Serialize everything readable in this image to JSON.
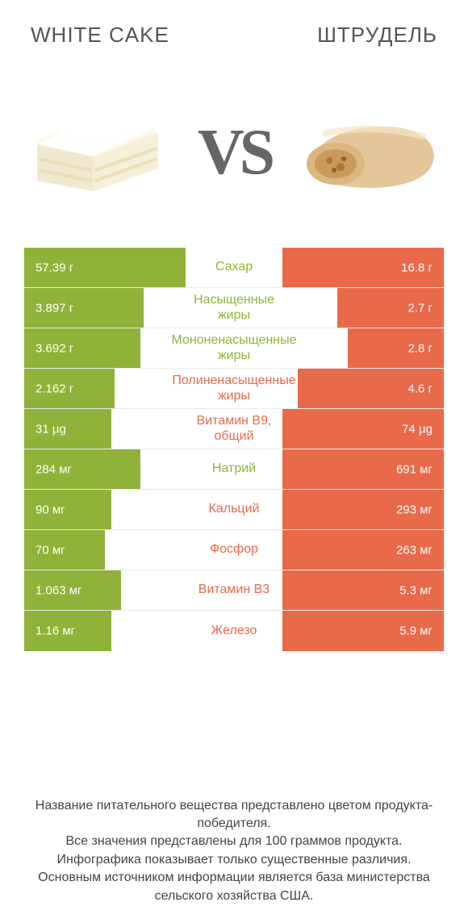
{
  "colors": {
    "left": "#8fb339",
    "right": "#e9694b",
    "bg": "#ffffff"
  },
  "header": {
    "left_title": "WHITE CAKE",
    "right_title": "ШТРУДЕЛЬ",
    "vs": "VS"
  },
  "rows": [
    {
      "label": "Сахар",
      "left_val": "57.39 г",
      "right_val": "16.8 г",
      "left_pct": 100,
      "right_pct": 100,
      "winner": "left"
    },
    {
      "label": "Насыщенные жиры",
      "left_val": "3.897 г",
      "right_val": "2.7 г",
      "left_pct": 74,
      "right_pct": 66,
      "winner": "left"
    },
    {
      "label": "Мононенасыщенные жиры",
      "left_val": "3.692 г",
      "right_val": "2.8 г",
      "left_pct": 80,
      "right_pct": 66,
      "winner": "left"
    },
    {
      "label": "Полиненасыщенные жиры",
      "left_val": "2.162 г",
      "right_val": "4.6 г",
      "left_pct": 62,
      "right_pct": 100,
      "winner": "right"
    },
    {
      "label": "Витамин B9, общий",
      "left_val": "31 µg",
      "right_val": "74 µg",
      "left_pct": 54,
      "right_pct": 100,
      "winner": "right"
    },
    {
      "label": "Натрий",
      "left_val": "284 мг",
      "right_val": "691 мг",
      "left_pct": 72,
      "right_pct": 100,
      "winner": "left"
    },
    {
      "label": "Кальций",
      "left_val": "90 мг",
      "right_val": "293 мг",
      "left_pct": 54,
      "right_pct": 100,
      "winner": "right"
    },
    {
      "label": "Фосфор",
      "left_val": "70 мг",
      "right_val": "263 мг",
      "left_pct": 50,
      "right_pct": 100,
      "winner": "right"
    },
    {
      "label": "Витамин B3",
      "left_val": "1.063 мг",
      "right_val": "5.3 мг",
      "left_pct": 60,
      "right_pct": 100,
      "winner": "right"
    },
    {
      "label": "Железо",
      "left_val": "1.16 мг",
      "right_val": "5.9 мг",
      "left_pct": 54,
      "right_pct": 100,
      "winner": "right"
    }
  ],
  "footer": {
    "line1": "Название питательного вещества представлено цветом продукта-победителя.",
    "line2": "Все значения представлены для 100 граммов продукта.",
    "line3": "Инфографика показывает только существенные различия.",
    "line4": "Основным источником информации является база министерства сельского хозяйства США."
  }
}
